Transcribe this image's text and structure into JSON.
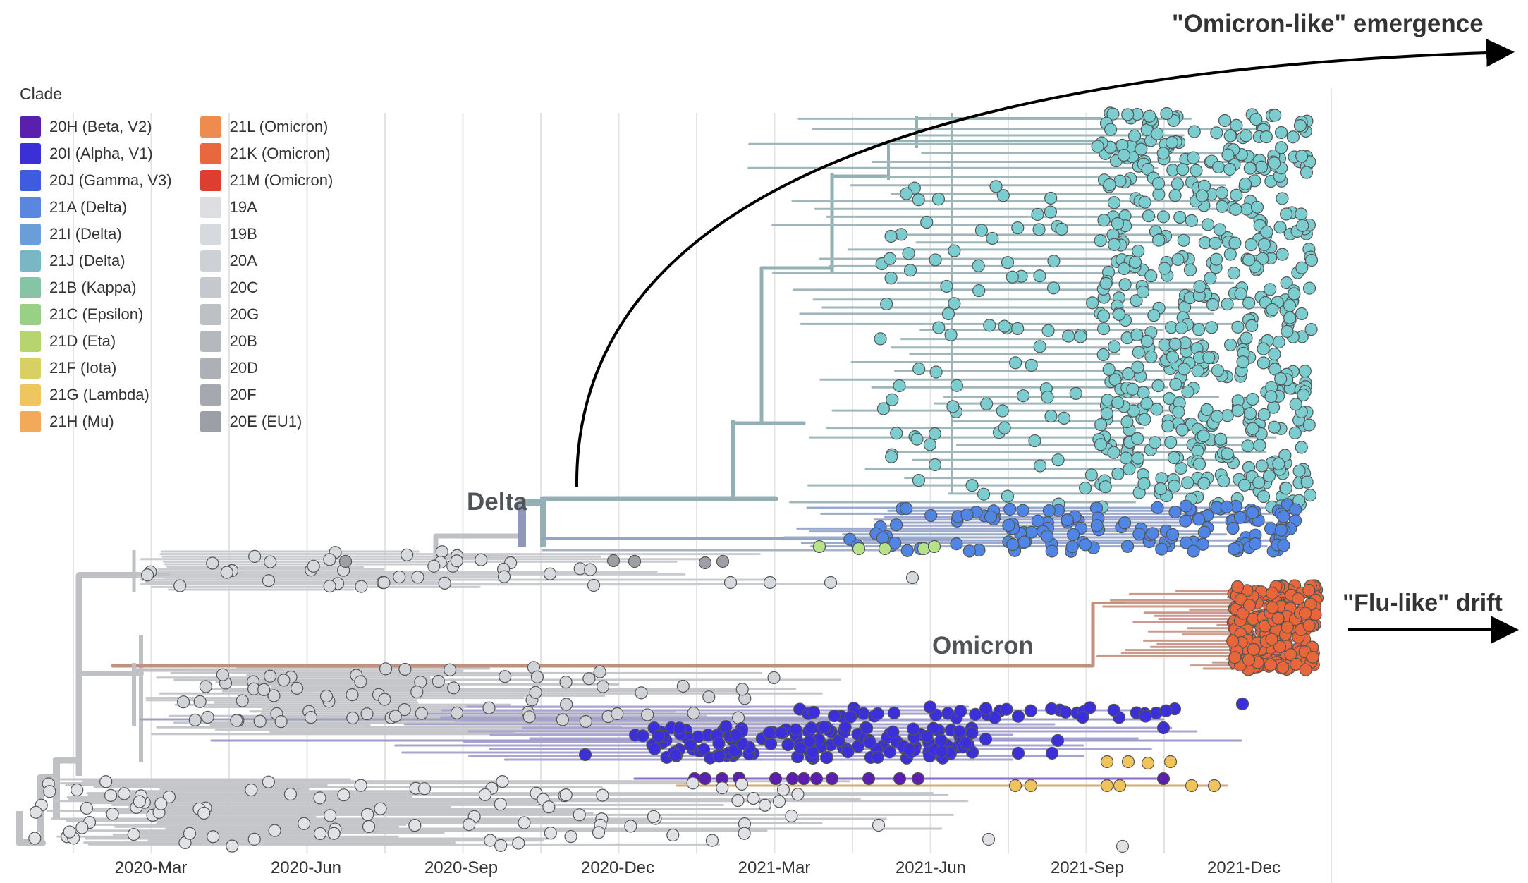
{
  "legend": {
    "title": "Clade",
    "columns": [
      [
        {
          "label": "20H (Beta, V2)",
          "color": "#5b1fae"
        },
        {
          "label": "20I (Alpha, V1)",
          "color": "#3b2fd8"
        },
        {
          "label": "20J (Gamma, V3)",
          "color": "#3f5be0"
        },
        {
          "label": "21A (Delta)",
          "color": "#5b86e0"
        },
        {
          "label": "21I (Delta)",
          "color": "#6a9ed8"
        },
        {
          "label": "21J (Delta)",
          "color": "#7ab7c4"
        },
        {
          "label": "21B (Kappa)",
          "color": "#86c4a6"
        },
        {
          "label": "21C (Epsilon)",
          "color": "#98d086"
        },
        {
          "label": "21D (Eta)",
          "color": "#b6d470"
        },
        {
          "label": "21F (Iota)",
          "color": "#d8d062"
        },
        {
          "label": "21G (Lambda)",
          "color": "#eec55e"
        },
        {
          "label": "21H (Mu)",
          "color": "#f2aa5a"
        }
      ],
      [
        {
          "label": "21L (Omicron)",
          "color": "#ee8c50"
        },
        {
          "label": "21K (Omicron)",
          "color": "#e8673e"
        },
        {
          "label": "21M (Omicron)",
          "color": "#de3d32"
        },
        {
          "label": "19A",
          "color": "#dcdee2"
        },
        {
          "label": "19B",
          "color": "#d6d9dd"
        },
        {
          "label": "20A",
          "color": "#cdd0d4"
        },
        {
          "label": "20C",
          "color": "#c5c8cd"
        },
        {
          "label": "20G",
          "color": "#bdc0c5"
        },
        {
          "label": "20B",
          "color": "#b5b8bd"
        },
        {
          "label": "20D",
          "color": "#adb0b6"
        },
        {
          "label": "20F",
          "color": "#a5a8ae"
        },
        {
          "label": "20E (EU1)",
          "color": "#9c9fa6"
        }
      ]
    ]
  },
  "annotations": {
    "omicron_like": "\"Omicron-like\" emergence",
    "flu_like": "\"Flu-like\" drift",
    "delta": "Delta",
    "omicron": "Omicron"
  },
  "axis": {
    "ticks": [
      "2020-Mar",
      "2020-Jun",
      "2020-Sep",
      "2020-Dec",
      "2021-Mar",
      "2021-Jun",
      "2021-Sep",
      "2021-Dec"
    ]
  },
  "colors": {
    "grey_branch": "#bfc1c4",
    "delta_branch": "#93b0b4",
    "delta_node": "#7ccdcf",
    "delta21a_node": "#4f86e6",
    "omicron_branch": "#c58f7e",
    "omicron_node": "#e8663a",
    "alpha_node": "#3a2fd8",
    "beta_node": "#5b1fae",
    "lambda_node": "#f0c45a"
  }
}
